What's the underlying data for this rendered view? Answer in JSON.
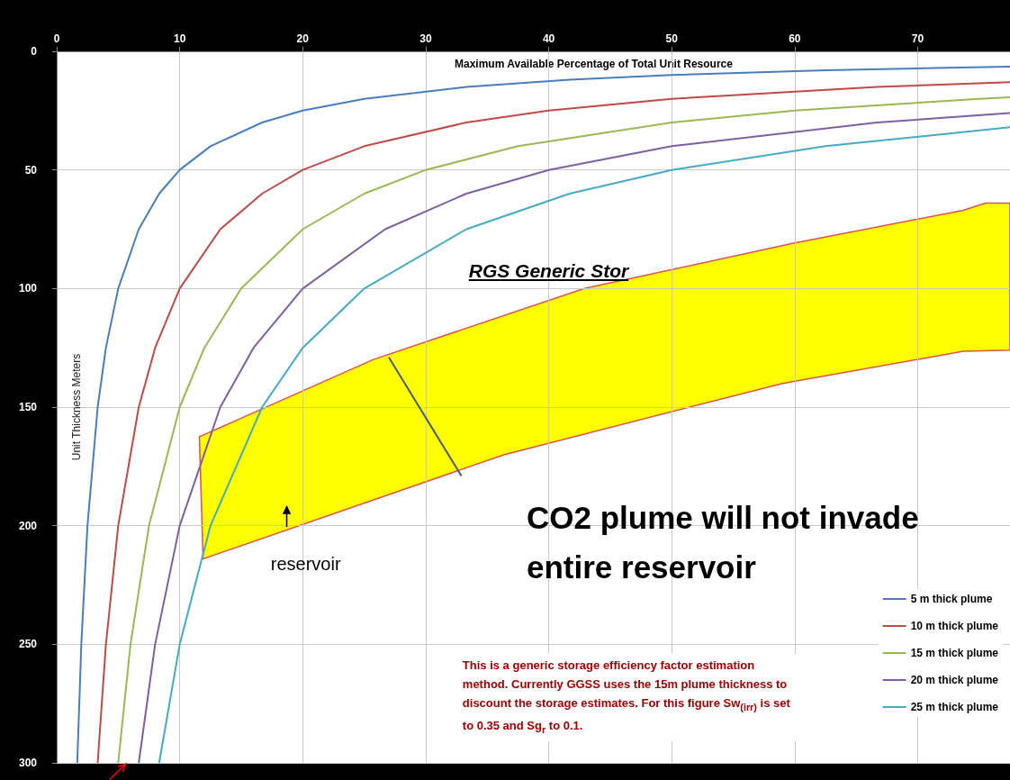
{
  "chart_data": {
    "type": "line",
    "xlabel": "Maximum Available Percentage of Total Unit Resource",
    "ylabel": "Unit Thickness Meters",
    "annotations": [
      "RGS Generic Stor",
      "CO2 plume will not invade entire reservoir",
      "reservoir",
      "This is a generic storage efficiency factor estimation method. Currently GGSS uses the 15m plume thickness to discount the storage estimates. For this figure Sw$_{(irr)}$ is set to 0.35 and Sg$_{r}$ to 0.1."
    ],
    "series": [
      {
        "name": "5 m thick plume",
        "color": "#4a7ebb",
        "x": [
          1.67,
          2,
          2.5,
          3.33,
          4,
          5,
          6.67,
          8.33,
          10,
          12.5,
          16.7,
          20,
          25,
          33.3,
          41.7,
          50,
          62.5,
          71.4,
          77.5
        ],
        "values": [
          300,
          250,
          200,
          150,
          125,
          100,
          75,
          60,
          50,
          40,
          30,
          25,
          20,
          15,
          12,
          10,
          8,
          7,
          6.5
        ]
      },
      {
        "name": "10 m thick plume",
        "color": "#be4b48",
        "x": [
          3.33,
          4,
          5,
          6.67,
          8,
          10,
          13.3,
          16.7,
          20,
          25,
          33.3,
          40,
          50,
          66.7,
          77.5
        ],
        "values": [
          300,
          250,
          200,
          150,
          125,
          100,
          75,
          60,
          50,
          40,
          30,
          25,
          20,
          15,
          13
        ]
      },
      {
        "name": "15 m thick plume",
        "color": "#98b954",
        "x": [
          5,
          6,
          7.5,
          10,
          12,
          15,
          20,
          25,
          30,
          37.5,
          50,
          60,
          75,
          77.5
        ],
        "values": [
          300,
          250,
          200,
          150,
          125,
          100,
          75,
          60,
          50,
          40,
          30,
          25,
          20,
          19.4
        ]
      },
      {
        "name": "20 m thick plume",
        "color": "#7d60a0",
        "x": [
          6.67,
          8,
          10,
          13.3,
          16,
          20,
          26.7,
          33.3,
          40,
          50,
          66.7,
          77.5
        ],
        "values": [
          300,
          250,
          200,
          150,
          125,
          100,
          75,
          60,
          50,
          40,
          30,
          26
        ]
      },
      {
        "name": "25 m thick plume",
        "color": "#46aac5",
        "x": [
          8.33,
          10,
          12.5,
          16.7,
          20,
          25,
          33.3,
          41.7,
          50,
          62.5,
          77.5
        ],
        "values": [
          300,
          250,
          200,
          150,
          125,
          100,
          75,
          60,
          50,
          40,
          32
        ]
      }
    ],
    "xlim": [
      0,
      77.5
    ],
    "xticks": [
      0,
      10,
      20,
      30,
      40,
      50,
      60,
      70
    ],
    "ylim": [
      300,
      0
    ],
    "yticks": [
      0,
      50,
      100,
      150,
      200,
      250,
      300
    ],
    "grid": true,
    "legend": "bottom right",
    "marker": "none",
    "line_style": "solid"
  }
}
